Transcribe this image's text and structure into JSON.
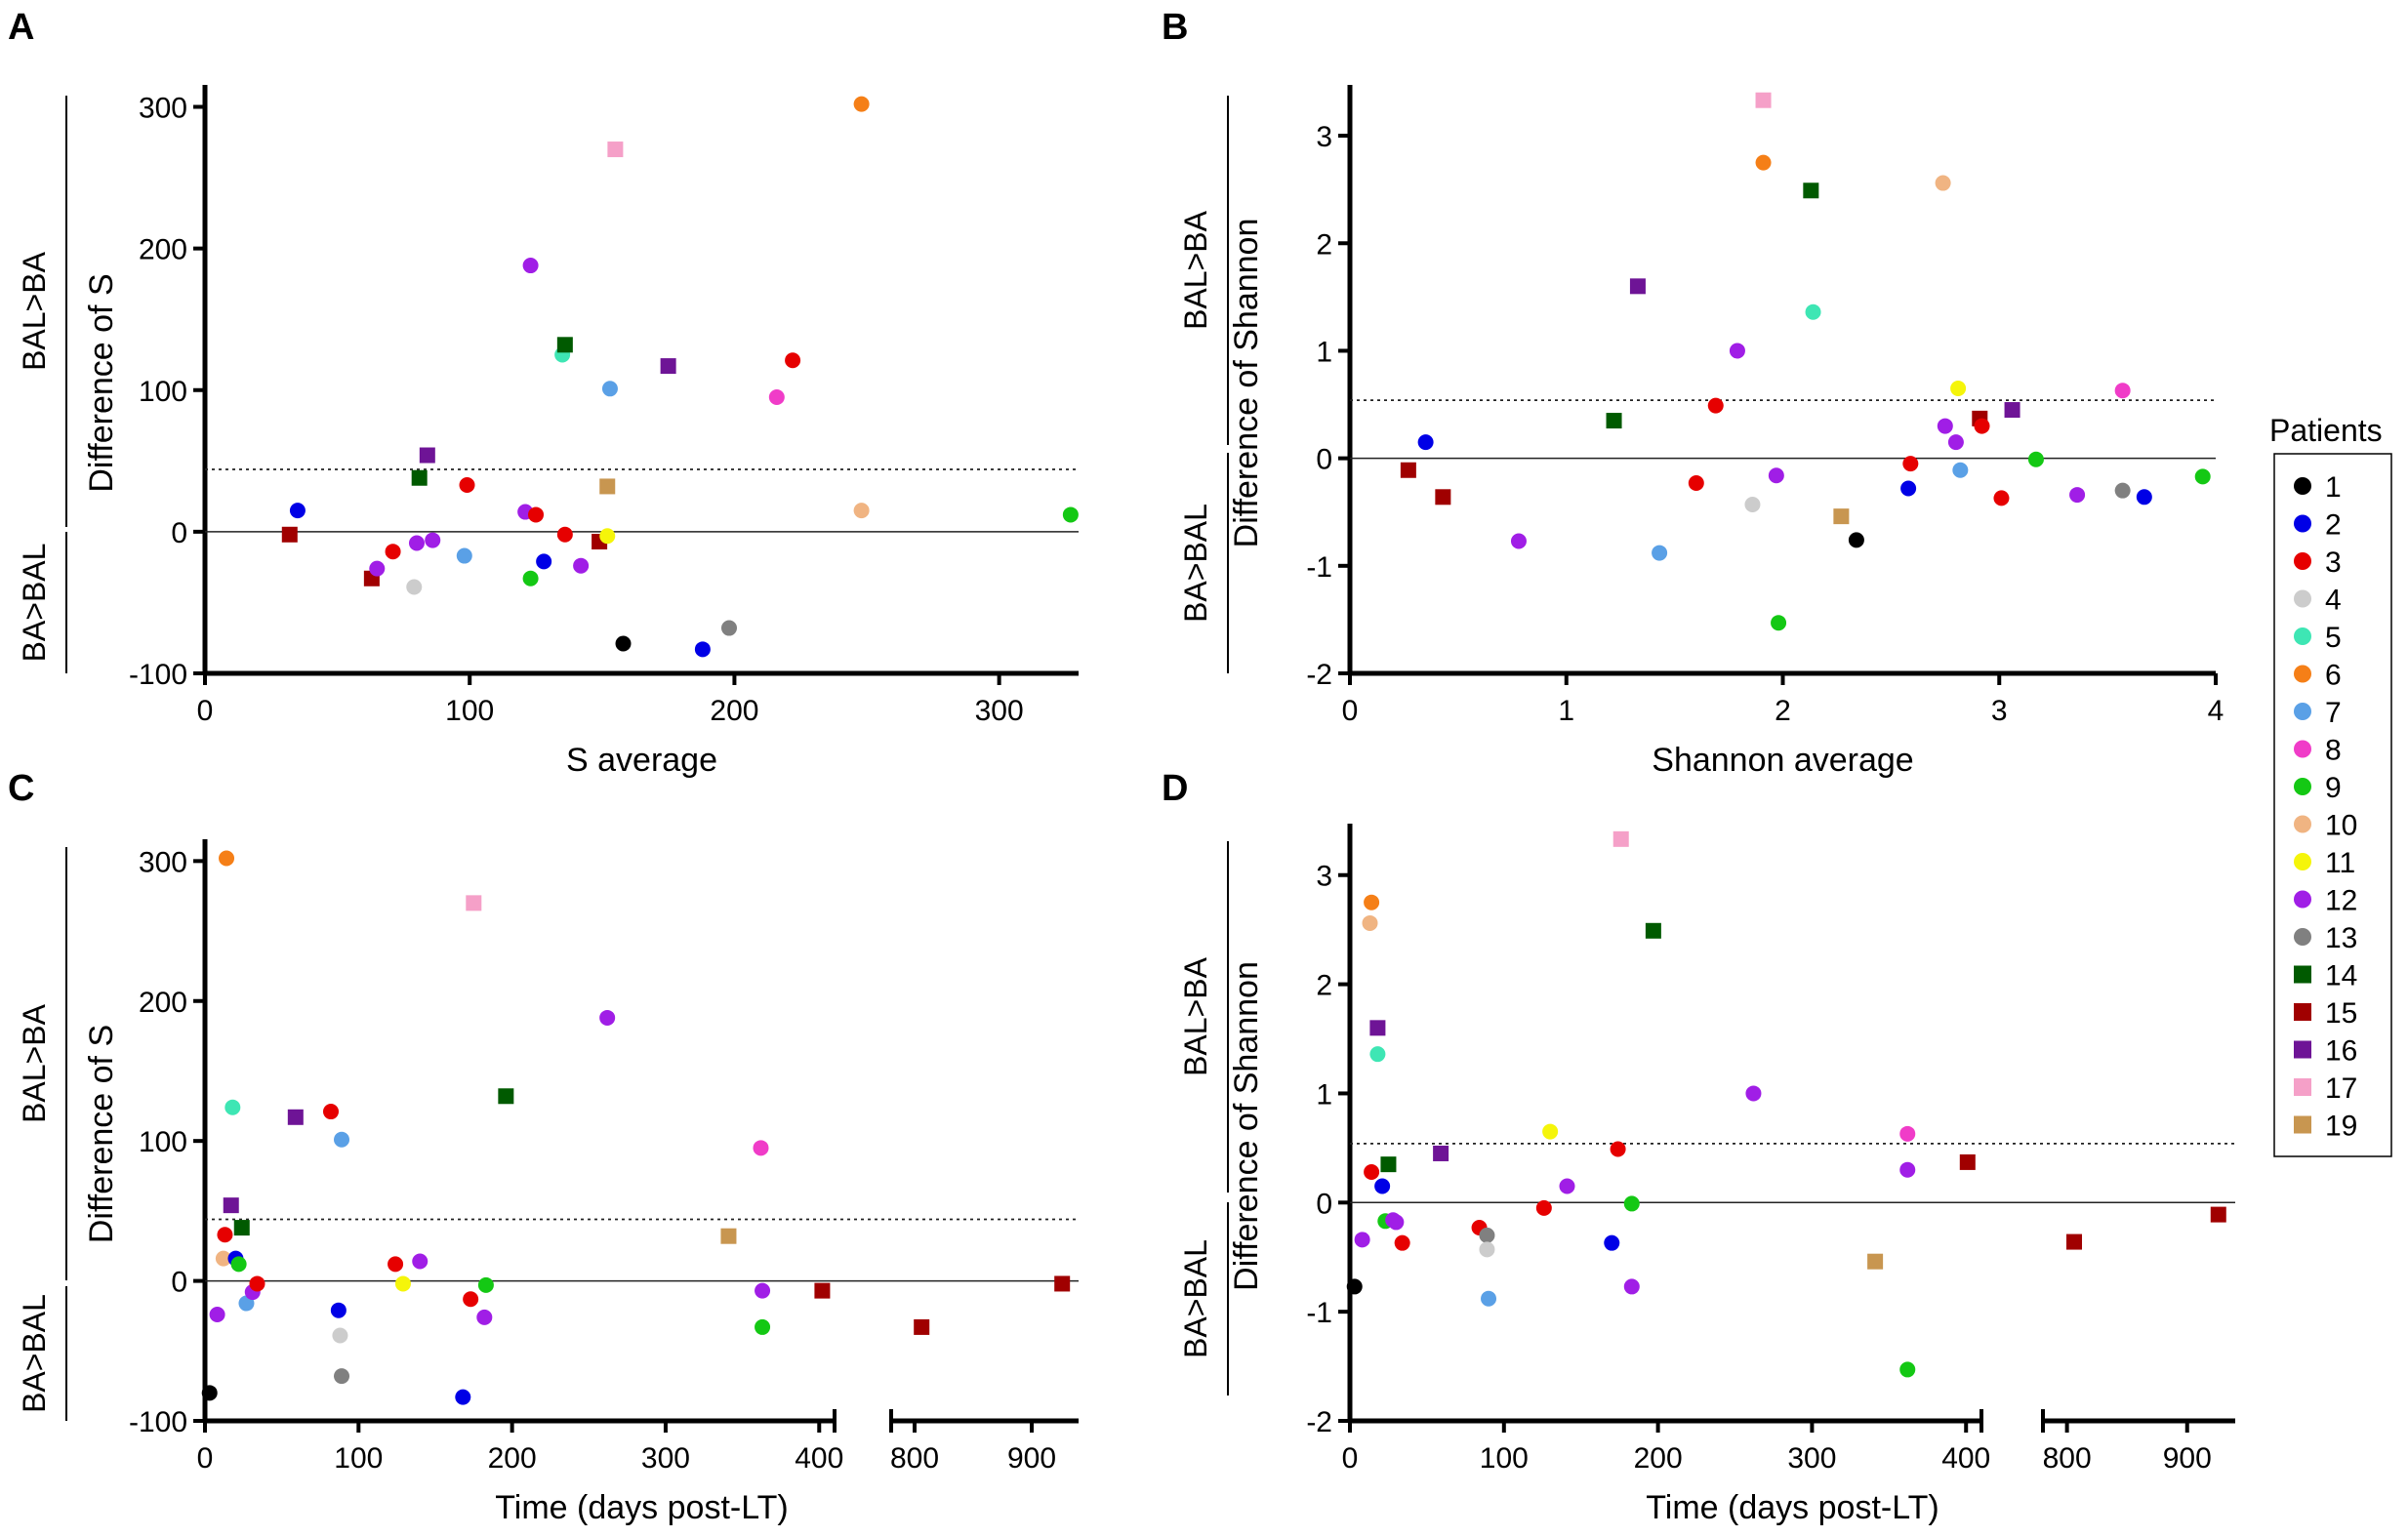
{
  "patients": {
    "1": {
      "color": "#000000",
      "shape": "circle"
    },
    "2": {
      "color": "#0000e6",
      "shape": "circle"
    },
    "3": {
      "color": "#e60000",
      "shape": "circle"
    },
    "4": {
      "color": "#cccccc",
      "shape": "circle"
    },
    "5": {
      "color": "#3ee6b4",
      "shape": "circle"
    },
    "6": {
      "color": "#f57f17",
      "shape": "circle"
    },
    "7": {
      "color": "#5aa0e6",
      "shape": "circle"
    },
    "8": {
      "color": "#f03cc8",
      "shape": "circle"
    },
    "9": {
      "color": "#14c814",
      "shape": "circle"
    },
    "10": {
      "color": "#f0b482",
      "shape": "circle"
    },
    "11": {
      "color": "#f5f50a",
      "shape": "circle"
    },
    "12": {
      "color": "#a01ee6",
      "shape": "circle"
    },
    "13": {
      "color": "#808080",
      "shape": "circle"
    },
    "14": {
      "color": "#005a00",
      "shape": "square"
    },
    "15": {
      "color": "#a00000",
      "shape": "square"
    },
    "16": {
      "color": "#6e1496",
      "shape": "square"
    },
    "17": {
      "color": "#f5a0c8",
      "shape": "square"
    },
    "19": {
      "color": "#c89650",
      "shape": "square"
    }
  },
  "legend": {
    "title": "Patients",
    "entries": [
      "1",
      "2",
      "3",
      "4",
      "5",
      "6",
      "7",
      "8",
      "9",
      "10",
      "11",
      "12",
      "13",
      "14",
      "15",
      "16",
      "17",
      "19"
    ]
  },
  "chart_data": [
    {
      "panel": "A",
      "type": "scatter",
      "xlabel": "S average",
      "ylabel": "Difference of S",
      "xlim": [
        0,
        330
      ],
      "ylim": [
        -100,
        310
      ],
      "xticks": [
        "0",
        "100",
        "200",
        "300"
      ],
      "xtick_values": [
        0,
        100,
        200,
        300
      ],
      "yticks": [
        "-100",
        "0",
        "100",
        "200",
        "300"
      ],
      "ytick_values": [
        -100,
        0,
        100,
        200,
        300
      ],
      "xbreak": null,
      "dotted_y": 44,
      "groups": {
        "upper": "BAL>BA",
        "lower": "BA>BAL"
      },
      "points": [
        {
          "p": "2",
          "x": 35,
          "y": 15
        },
        {
          "p": "15",
          "x": 32,
          "y": -2
        },
        {
          "p": "15",
          "x": 63,
          "y": -33
        },
        {
          "p": "12",
          "x": 65,
          "y": -26
        },
        {
          "p": "3",
          "x": 71,
          "y": -14
        },
        {
          "p": "4",
          "x": 79,
          "y": -39
        },
        {
          "p": "12",
          "x": 80,
          "y": -8
        },
        {
          "p": "14",
          "x": 81,
          "y": 38
        },
        {
          "p": "16",
          "x": 84,
          "y": 54
        },
        {
          "p": "12",
          "x": 86,
          "y": -6
        },
        {
          "p": "7",
          "x": 98,
          "y": -17
        },
        {
          "p": "3",
          "x": 99,
          "y": 33
        },
        {
          "p": "12",
          "x": 121,
          "y": 14
        },
        {
          "p": "9",
          "x": 123,
          "y": -33
        },
        {
          "p": "3",
          "x": 125,
          "y": 12
        },
        {
          "p": "12",
          "x": 123,
          "y": 188
        },
        {
          "p": "2",
          "x": 128,
          "y": -21
        },
        {
          "p": "5",
          "x": 135,
          "y": 125
        },
        {
          "p": "14",
          "x": 136,
          "y": 132
        },
        {
          "p": "3",
          "x": 136,
          "y": -2
        },
        {
          "p": "12",
          "x": 142,
          "y": -24
        },
        {
          "p": "15",
          "x": 149,
          "y": -7
        },
        {
          "p": "11",
          "x": 152,
          "y": -3
        },
        {
          "p": "19",
          "x": 152,
          "y": 32
        },
        {
          "p": "7",
          "x": 153,
          "y": 101
        },
        {
          "p": "17",
          "x": 155,
          "y": 270
        },
        {
          "p": "1",
          "x": 158,
          "y": -79
        },
        {
          "p": "16",
          "x": 175,
          "y": 117
        },
        {
          "p": "2",
          "x": 188,
          "y": -83
        },
        {
          "p": "13",
          "x": 198,
          "y": -68
        },
        {
          "p": "8",
          "x": 216,
          "y": 95
        },
        {
          "p": "3",
          "x": 222,
          "y": 121
        },
        {
          "p": "6",
          "x": 248,
          "y": 302
        },
        {
          "p": "10",
          "x": 248,
          "y": 15
        },
        {
          "p": "9",
          "x": 327,
          "y": 12
        }
      ]
    },
    {
      "panel": "B",
      "type": "scatter",
      "xlabel": "Shannon average",
      "ylabel": "Difference of Shannon",
      "xlim": [
        0,
        4
      ],
      "ylim": [
        -2,
        3.4
      ],
      "xticks": [
        "0",
        "1",
        "2",
        "3",
        "4"
      ],
      "xtick_values": [
        0,
        1,
        2,
        3,
        4
      ],
      "yticks": [
        "-2",
        "-1",
        "0",
        "1",
        "2",
        "3"
      ],
      "ytick_values": [
        -2,
        -1,
        0,
        1,
        2,
        3
      ],
      "xbreak": null,
      "dotted_y": 0.54,
      "groups": {
        "upper": "BAL>BA",
        "lower": "BA>BAL"
      },
      "points": [
        {
          "p": "15",
          "x": 0.27,
          "y": -0.11
        },
        {
          "p": "2",
          "x": 0.35,
          "y": 0.15
        },
        {
          "p": "15",
          "x": 0.43,
          "y": -0.36
        },
        {
          "p": "12",
          "x": 0.78,
          "y": -0.77
        },
        {
          "p": "14",
          "x": 1.22,
          "y": 0.35
        },
        {
          "p": "16",
          "x": 1.33,
          "y": 1.6
        },
        {
          "p": "7",
          "x": 1.43,
          "y": -0.88
        },
        {
          "p": "3",
          "x": 1.6,
          "y": -0.23
        },
        {
          "p": "3",
          "x": 1.69,
          "y": 0.49
        },
        {
          "p": "12",
          "x": 1.79,
          "y": 1.0
        },
        {
          "p": "4",
          "x": 1.86,
          "y": -0.43
        },
        {
          "p": "17",
          "x": 1.91,
          "y": 3.33
        },
        {
          "p": "6",
          "x": 1.91,
          "y": 2.75
        },
        {
          "p": "12",
          "x": 1.97,
          "y": -0.16
        },
        {
          "p": "9",
          "x": 1.98,
          "y": -1.53
        },
        {
          "p": "14",
          "x": 2.13,
          "y": 2.49
        },
        {
          "p": "5",
          "x": 2.14,
          "y": 1.36
        },
        {
          "p": "19",
          "x": 2.27,
          "y": -0.54
        },
        {
          "p": "1",
          "x": 2.34,
          "y": -0.76
        },
        {
          "p": "2",
          "x": 2.58,
          "y": -0.28
        },
        {
          "p": "3",
          "x": 2.59,
          "y": -0.05
        },
        {
          "p": "10",
          "x": 2.74,
          "y": 2.56
        },
        {
          "p": "12",
          "x": 2.75,
          "y": 0.3
        },
        {
          "p": "12",
          "x": 2.8,
          "y": 0.15
        },
        {
          "p": "11",
          "x": 2.81,
          "y": 0.65
        },
        {
          "p": "7",
          "x": 2.82,
          "y": -0.11
        },
        {
          "p": "15",
          "x": 2.91,
          "y": 0.37
        },
        {
          "p": "3",
          "x": 2.92,
          "y": 0.3
        },
        {
          "p": "3",
          "x": 3.01,
          "y": -0.37
        },
        {
          "p": "16",
          "x": 3.06,
          "y": 0.45
        },
        {
          "p": "9",
          "x": 3.17,
          "y": -0.01
        },
        {
          "p": "12",
          "x": 3.36,
          "y": -0.34
        },
        {
          "p": "13",
          "x": 3.57,
          "y": -0.3
        },
        {
          "p": "8",
          "x": 3.57,
          "y": 0.63
        },
        {
          "p": "2",
          "x": 3.67,
          "y": -0.36
        },
        {
          "p": "9",
          "x": 3.94,
          "y": -0.17
        }
      ]
    },
    {
      "panel": "C",
      "type": "scatter",
      "xlabel": "Time (days post-LT)",
      "ylabel": "Difference of S",
      "xlim": [
        0,
        940
      ],
      "ylim": [
        -100,
        310
      ],
      "xticks": [
        "0",
        "100",
        "200",
        "300",
        "400",
        "800",
        "900"
      ],
      "xtick_values": [
        0,
        100,
        200,
        300,
        400,
        800,
        900
      ],
      "yticks": [
        "-100",
        "0",
        "100",
        "200",
        "300"
      ],
      "ytick_values": [
        -100,
        0,
        100,
        200,
        300
      ],
      "xbreak": {
        "seg1": [
          0,
          410
        ],
        "seg2": [
          780,
          940
        ]
      },
      "dotted_y": 44,
      "groups": {
        "upper": "BAL>BA",
        "lower": "BA>BAL"
      },
      "points": [
        {
          "p": "1",
          "x": 3,
          "y": -80
        },
        {
          "p": "12",
          "x": 8,
          "y": -24
        },
        {
          "p": "6",
          "x": 14,
          "y": 302
        },
        {
          "p": "10",
          "x": 12,
          "y": 16
        },
        {
          "p": "3",
          "x": 13,
          "y": 33
        },
        {
          "p": "16",
          "x": 17,
          "y": 54
        },
        {
          "p": "5",
          "x": 18,
          "y": 124
        },
        {
          "p": "2",
          "x": 20,
          "y": 16
        },
        {
          "p": "9",
          "x": 22,
          "y": 12
        },
        {
          "p": "14",
          "x": 24,
          "y": 38
        },
        {
          "p": "7",
          "x": 27,
          "y": -16
        },
        {
          "p": "12",
          "x": 31,
          "y": -8
        },
        {
          "p": "3",
          "x": 34,
          "y": -2
        },
        {
          "p": "16",
          "x": 59,
          "y": 117
        },
        {
          "p": "3",
          "x": 82,
          "y": 121
        },
        {
          "p": "7",
          "x": 89,
          "y": 101
        },
        {
          "p": "2",
          "x": 87,
          "y": -21
        },
        {
          "p": "4",
          "x": 88,
          "y": -39
        },
        {
          "p": "13",
          "x": 89,
          "y": -68
        },
        {
          "p": "3",
          "x": 124,
          "y": 12
        },
        {
          "p": "11",
          "x": 129,
          "y": -2
        },
        {
          "p": "12",
          "x": 140,
          "y": 14
        },
        {
          "p": "2",
          "x": 168,
          "y": -83
        },
        {
          "p": "17",
          "x": 175,
          "y": 270
        },
        {
          "p": "3",
          "x": 173,
          "y": -13
        },
        {
          "p": "9",
          "x": 183,
          "y": -3
        },
        {
          "p": "12",
          "x": 182,
          "y": -26
        },
        {
          "p": "14",
          "x": 196,
          "y": 132
        },
        {
          "p": "12",
          "x": 262,
          "y": 188
        },
        {
          "p": "19",
          "x": 341,
          "y": 32
        },
        {
          "p": "8",
          "x": 362,
          "y": 95
        },
        {
          "p": "12",
          "x": 363,
          "y": -7
        },
        {
          "p": "9",
          "x": 363,
          "y": -33
        },
        {
          "p": "15",
          "x": 402,
          "y": -7
        },
        {
          "p": "15",
          "x": 806,
          "y": -33
        },
        {
          "p": "15",
          "x": 926,
          "y": -2
        }
      ]
    },
    {
      "panel": "D",
      "type": "scatter",
      "xlabel": "Time (days post-LT)",
      "ylabel": "Difference of Shannon",
      "xlim": [
        0,
        940
      ],
      "ylim": [
        -2,
        3.4
      ],
      "xticks": [
        "0",
        "100",
        "200",
        "300",
        "400",
        "800",
        "900"
      ],
      "xtick_values": [
        0,
        100,
        200,
        300,
        400,
        800,
        900
      ],
      "yticks": [
        "-2",
        "-1",
        "0",
        "1",
        "2",
        "3"
      ],
      "ytick_values": [
        -2,
        -1,
        0,
        1,
        2,
        3
      ],
      "xbreak": {
        "seg1": [
          0,
          410
        ],
        "seg2": [
          780,
          940
        ]
      },
      "dotted_y": 0.54,
      "groups": {
        "upper": "BAL>BA",
        "lower": "BA>BAL"
      },
      "points": [
        {
          "p": "1",
          "x": 3,
          "y": -0.77
        },
        {
          "p": "12",
          "x": 8,
          "y": -0.34
        },
        {
          "p": "10",
          "x": 13,
          "y": 2.56
        },
        {
          "p": "6",
          "x": 14,
          "y": 2.75
        },
        {
          "p": "3",
          "x": 14,
          "y": 0.28
        },
        {
          "p": "5",
          "x": 18,
          "y": 1.36
        },
        {
          "p": "16",
          "x": 18,
          "y": 1.6
        },
        {
          "p": "2",
          "x": 21,
          "y": 0.15
        },
        {
          "p": "9",
          "x": 23,
          "y": -0.17
        },
        {
          "p": "14",
          "x": 25,
          "y": 0.35
        },
        {
          "p": "12",
          "x": 28,
          "y": -0.16
        },
        {
          "p": "12",
          "x": 30,
          "y": -0.18
        },
        {
          "p": "3",
          "x": 34,
          "y": -0.37
        },
        {
          "p": "16",
          "x": 59,
          "y": 0.45
        },
        {
          "p": "3",
          "x": 84,
          "y": -0.23
        },
        {
          "p": "13",
          "x": 89,
          "y": -0.3
        },
        {
          "p": "4",
          "x": 89,
          "y": -0.43
        },
        {
          "p": "7",
          "x": 90,
          "y": -0.88
        },
        {
          "p": "3",
          "x": 126,
          "y": -0.05
        },
        {
          "p": "11",
          "x": 130,
          "y": 0.65
        },
        {
          "p": "12",
          "x": 141,
          "y": 0.15
        },
        {
          "p": "2",
          "x": 170,
          "y": -0.37
        },
        {
          "p": "3",
          "x": 174,
          "y": 0.49
        },
        {
          "p": "17",
          "x": 176,
          "y": 3.33
        },
        {
          "p": "9",
          "x": 183,
          "y": -0.01
        },
        {
          "p": "12",
          "x": 183,
          "y": -0.77
        },
        {
          "p": "14",
          "x": 197,
          "y": 2.49
        },
        {
          "p": "12",
          "x": 262,
          "y": 1.0
        },
        {
          "p": "19",
          "x": 341,
          "y": -0.54
        },
        {
          "p": "8",
          "x": 362,
          "y": 0.63
        },
        {
          "p": "12",
          "x": 362,
          "y": 0.3
        },
        {
          "p": "9",
          "x": 362,
          "y": -1.53
        },
        {
          "p": "15",
          "x": 401,
          "y": 0.37
        },
        {
          "p": "15",
          "x": 806,
          "y": -0.36
        },
        {
          "p": "15",
          "x": 926,
          "y": -0.11
        }
      ]
    }
  ]
}
